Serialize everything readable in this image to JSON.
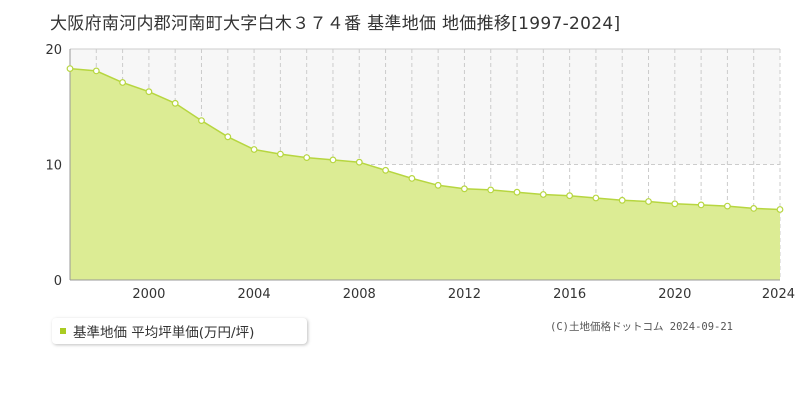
{
  "title": "大阪府南河内郡河南町大字白木３７４番 基準地価 地価推移[1997-2024]",
  "copyright": "(C)土地価格ドットコム 2024-09-21",
  "legend_label": "基準地価 平均坪単価(万円/坪)",
  "colors": {
    "fill": "#dcec94",
    "line": "#b7d640",
    "marker_fill": "#ffffff",
    "grid": "#cccccc",
    "band": "#f7f7f7",
    "legend_swatch": "#aacc22"
  },
  "chart_data": {
    "type": "area",
    "x": [
      1997,
      1998,
      1999,
      2000,
      2001,
      2002,
      2003,
      2004,
      2005,
      2006,
      2007,
      2008,
      2009,
      2010,
      2011,
      2012,
      2013,
      2014,
      2015,
      2016,
      2017,
      2018,
      2019,
      2020,
      2021,
      2022,
      2023,
      2024
    ],
    "series": [
      {
        "name": "基準地価 平均坪単価(万円/坪)",
        "values": [
          18.3,
          18.1,
          17.1,
          16.3,
          15.3,
          13.8,
          12.4,
          11.3,
          10.9,
          10.6,
          10.4,
          10.2,
          9.5,
          8.8,
          8.2,
          7.9,
          7.8,
          7.6,
          7.4,
          7.3,
          7.1,
          6.9,
          6.8,
          6.6,
          6.5,
          6.4,
          6.2,
          6.1
        ]
      }
    ],
    "xlim": [
      1997,
      2024
    ],
    "ylim": [
      0,
      20
    ],
    "x_ticks": [
      "2000",
      "2004",
      "2008",
      "2012",
      "2016",
      "2020",
      "2024"
    ],
    "y_ticks": [
      "0",
      "10",
      "20"
    ],
    "grid": true,
    "legend": "bottom-left"
  }
}
